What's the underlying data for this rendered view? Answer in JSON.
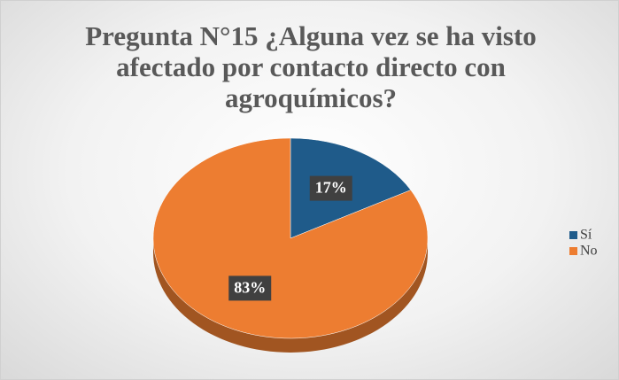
{
  "chart_data": {
    "type": "pie",
    "title": "Pregunta N°15 ¿Alguna vez se ha visto afectado por contacto directo con agroquímicos?",
    "categories": [
      "Sí",
      "No"
    ],
    "values": [
      17,
      83
    ],
    "value_labels": [
      "17%",
      "83%"
    ],
    "colors": [
      "#1f5b8a",
      "#ed7d31"
    ],
    "legend": "right"
  }
}
